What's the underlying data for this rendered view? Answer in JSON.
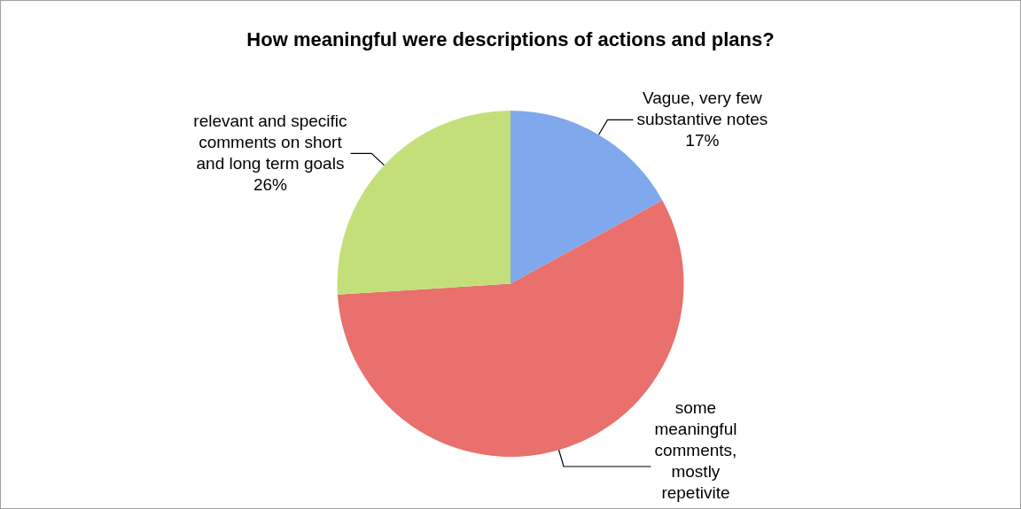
{
  "chart_data": {
    "type": "pie",
    "title": "How meaningful were descriptions of actions and plans?",
    "categories": [
      "Vague, very few substantive notes",
      "some meaningful comments, mostly repetivite",
      "relevant and specific comments on short and long term goals"
    ],
    "values": [
      17,
      57,
      26
    ],
    "value_labels": [
      "17%",
      null,
      "26%"
    ],
    "colors": [
      "#7fa9ec",
      "#e9706c",
      "#c3df7a"
    ],
    "legend": false
  }
}
